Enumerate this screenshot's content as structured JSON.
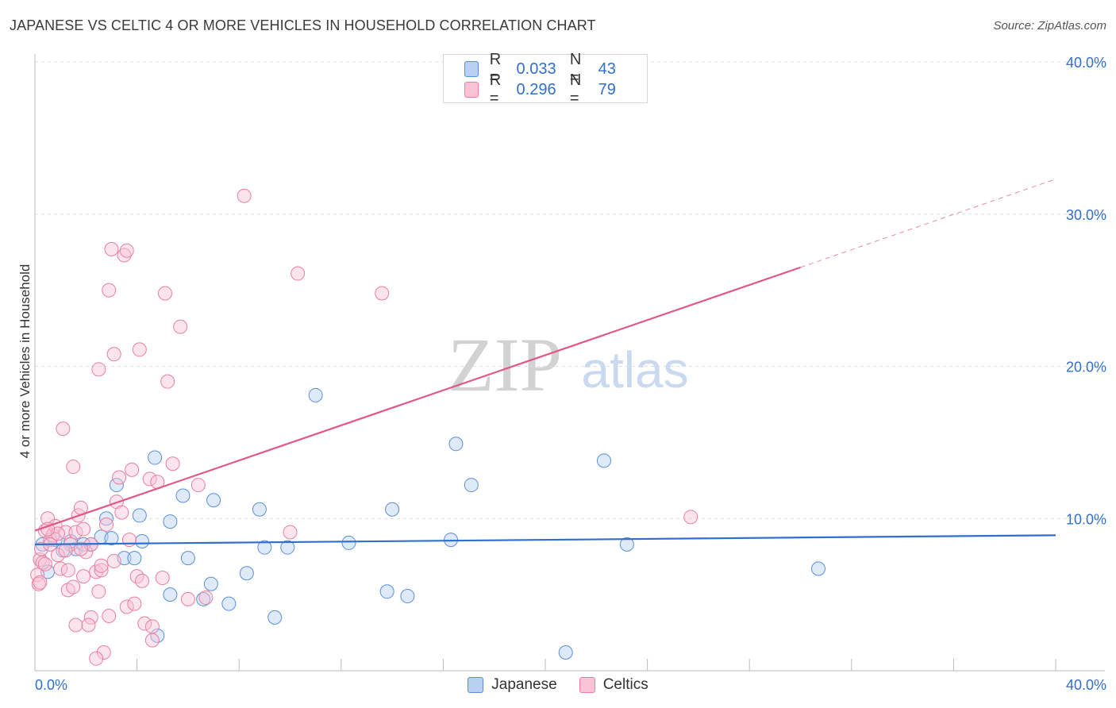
{
  "header": {
    "title": "JAPANESE VS CELTIC 4 OR MORE VEHICLES IN HOUSEHOLD CORRELATION CHART",
    "source": "Source: ZipAtlas.com"
  },
  "watermark": {
    "zip": "ZIP",
    "atlas": "atlas"
  },
  "legend_top": [
    {
      "r_label": "R =",
      "r_value": "0.033",
      "n_label": "N =",
      "n_value": "43",
      "fill": "#b8d0f2",
      "stroke": "#5b8fd9"
    },
    {
      "r_label": "R =",
      "r_value": "0.296",
      "n_label": "N =",
      "n_value": "79",
      "fill": "#f8c3d4",
      "stroke": "#e87fa3"
    }
  ],
  "legend_bottom": [
    {
      "label": "Japanese",
      "fill": "#b8d0f2",
      "stroke": "#5b8fd9"
    },
    {
      "label": "Celtics",
      "fill": "#f8c3d4",
      "stroke": "#e87fa3"
    }
  ],
  "chart_data": {
    "type": "scatter",
    "title": "JAPANESE VS CELTIC 4 OR MORE VEHICLES IN HOUSEHOLD CORRELATION CHART",
    "xlabel": "",
    "ylabel": "4 or more Vehicles in Household",
    "xlim": [
      0,
      40
    ],
    "ylim": [
      0,
      40
    ],
    "x_tick_labels": {
      "left": "0.0%",
      "right": "40.0%"
    },
    "y_tick_labels": [
      {
        "value": 10,
        "label": "10.0%"
      },
      {
        "value": 20,
        "label": "20.0%"
      },
      {
        "value": 30,
        "label": "30.0%"
      },
      {
        "value": 40,
        "label": "40.0%"
      }
    ],
    "colors": {
      "Japanese": "#2f6fce",
      "Celtics": "#e0578a",
      "grid": "#dddddd",
      "tick_text": "#2f6fce"
    },
    "series": [
      {
        "name": "Japanese",
        "points": [
          [
            0.3,
            8.3
          ],
          [
            0.5,
            6.5
          ],
          [
            0.8,
            8.6
          ],
          [
            1.1,
            7.9
          ],
          [
            1.6,
            8.0
          ],
          [
            2.2,
            8.3
          ],
          [
            2.6,
            8.8
          ],
          [
            2.8,
            10.0
          ],
          [
            3.0,
            8.7
          ],
          [
            3.2,
            12.2
          ],
          [
            3.5,
            7.4
          ],
          [
            3.9,
            7.4
          ],
          [
            4.1,
            10.2
          ],
          [
            4.2,
            8.5
          ],
          [
            4.7,
            14.0
          ],
          [
            4.8,
            2.3
          ],
          [
            5.3,
            5.0
          ],
          [
            5.8,
            11.5
          ],
          [
            5.3,
            9.8
          ],
          [
            6.0,
            7.4
          ],
          [
            6.6,
            4.7
          ],
          [
            6.9,
            5.7
          ],
          [
            7.0,
            11.2
          ],
          [
            7.6,
            4.4
          ],
          [
            8.3,
            6.4
          ],
          [
            8.8,
            10.6
          ],
          [
            9.0,
            8.1
          ],
          [
            9.4,
            3.5
          ],
          [
            9.9,
            8.1
          ],
          [
            11.0,
            18.1
          ],
          [
            12.3,
            8.4
          ],
          [
            13.8,
            5.2
          ],
          [
            14.0,
            10.6
          ],
          [
            14.6,
            4.9
          ],
          [
            16.3,
            8.6
          ],
          [
            16.5,
            14.9
          ],
          [
            17.1,
            12.2
          ],
          [
            20.8,
            1.2
          ],
          [
            22.3,
            13.8
          ],
          [
            23.2,
            8.3
          ],
          [
            30.7,
            6.7
          ],
          [
            1.4,
            8.5
          ],
          [
            1.9,
            8.3
          ]
        ],
        "trend": {
          "x0": 0,
          "y0": 8.3,
          "x1": 40,
          "y1": 8.9
        }
      },
      {
        "name": "Celtics",
        "points": [
          [
            0.1,
            6.3
          ],
          [
            0.15,
            5.7
          ],
          [
            0.2,
            7.3
          ],
          [
            0.25,
            8.0
          ],
          [
            0.3,
            7.1
          ],
          [
            0.4,
            9.2
          ],
          [
            0.5,
            10.0
          ],
          [
            0.6,
            8.6
          ],
          [
            0.7,
            8.9
          ],
          [
            0.8,
            9.5
          ],
          [
            0.9,
            7.6
          ],
          [
            1.0,
            6.7
          ],
          [
            1.1,
            15.9
          ],
          [
            1.2,
            9.1
          ],
          [
            1.3,
            5.3
          ],
          [
            1.4,
            8.3
          ],
          [
            1.5,
            13.4
          ],
          [
            1.6,
            3.0
          ],
          [
            1.6,
            9.1
          ],
          [
            1.7,
            10.2
          ],
          [
            1.8,
            10.7
          ],
          [
            1.9,
            6.2
          ],
          [
            2.0,
            7.8
          ],
          [
            2.2,
            8.3
          ],
          [
            2.2,
            3.5
          ],
          [
            2.4,
            6.5
          ],
          [
            2.5,
            5.2
          ],
          [
            2.5,
            19.8
          ],
          [
            2.6,
            6.6
          ],
          [
            2.7,
            1.2
          ],
          [
            2.8,
            9.6
          ],
          [
            2.9,
            3.6
          ],
          [
            2.9,
            25.0
          ],
          [
            3.0,
            27.7
          ],
          [
            3.1,
            20.8
          ],
          [
            3.2,
            11.1
          ],
          [
            3.3,
            12.7
          ],
          [
            3.4,
            10.4
          ],
          [
            3.5,
            27.3
          ],
          [
            3.6,
            27.6
          ],
          [
            3.6,
            4.2
          ],
          [
            3.7,
            8.6
          ],
          [
            3.8,
            13.2
          ],
          [
            3.9,
            4.4
          ],
          [
            4.0,
            6.2
          ],
          [
            4.1,
            21.1
          ],
          [
            4.2,
            5.9
          ],
          [
            4.3,
            3.1
          ],
          [
            4.5,
            12.6
          ],
          [
            4.6,
            2.9
          ],
          [
            4.8,
            12.4
          ],
          [
            5.0,
            6.1
          ],
          [
            5.1,
            24.8
          ],
          [
            5.2,
            19.0
          ],
          [
            5.4,
            13.6
          ],
          [
            5.7,
            22.6
          ],
          [
            6.0,
            4.7
          ],
          [
            6.4,
            12.2
          ],
          [
            6.7,
            4.8
          ],
          [
            8.2,
            31.2
          ],
          [
            10.0,
            9.1
          ],
          [
            10.3,
            26.1
          ],
          [
            13.6,
            24.8
          ],
          [
            25.7,
            10.1
          ],
          [
            0.6,
            8.3
          ],
          [
            0.9,
            9.0
          ],
          [
            1.3,
            6.6
          ],
          [
            1.5,
            5.5
          ],
          [
            1.8,
            8.0
          ],
          [
            2.1,
            3.0
          ],
          [
            2.4,
            0.8
          ],
          [
            3.1,
            7.2
          ],
          [
            0.2,
            5.8
          ],
          [
            0.4,
            7.0
          ],
          [
            0.5,
            9.3
          ],
          [
            1.2,
            7.9
          ],
          [
            1.9,
            9.3
          ],
          [
            2.6,
            6.9
          ],
          [
            4.6,
            2.0
          ]
        ],
        "trend": {
          "x0": 0,
          "y0": 9.2,
          "x1": 30,
          "y1": 26.5
        },
        "trend_dashed": {
          "x0": 30,
          "y0": 26.5,
          "x1": 40,
          "y1": 32.3
        }
      }
    ]
  }
}
